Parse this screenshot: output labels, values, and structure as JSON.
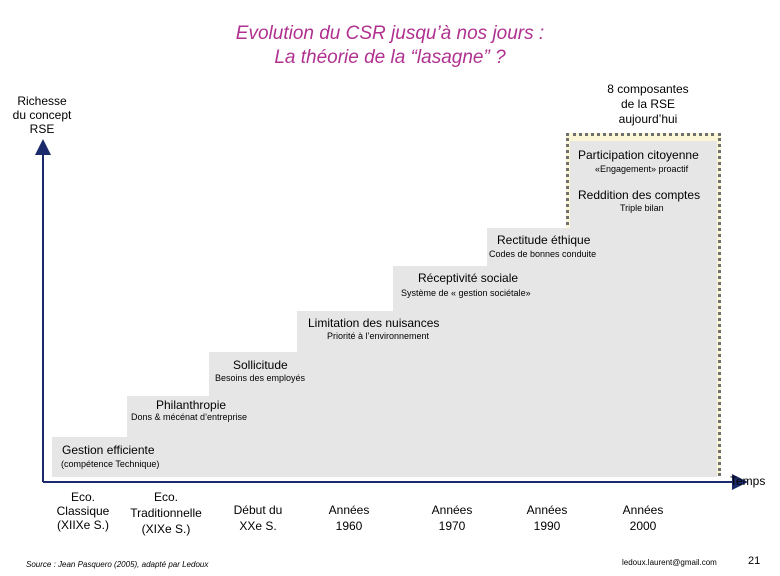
{
  "title": {
    "line1": "Evolution du CSR jusqu’à nos jours :",
    "line2": "La théorie de la “lasagne” ?"
  },
  "y_axis": {
    "label": [
      "Richesse",
      "du concept",
      "RSE"
    ]
  },
  "rse_label": [
    "8 composantes",
    "de la RSE",
    "aujourd’hui"
  ],
  "x_axis": {
    "end_label": "Temps",
    "periods": [
      [
        "Eco.",
        "Classique",
        "(XIIXe S.)"
      ],
      [
        "Eco.",
        "Traditionnelle",
        "(XIXe S.)"
      ],
      [
        "Début du",
        "XXe S."
      ],
      [
        "Années",
        "1960"
      ],
      [
        "Années",
        "1970"
      ],
      [
        "Années",
        "1990"
      ],
      [
        "Années",
        "2000"
      ]
    ]
  },
  "layers": [
    {
      "label": "Participation citoyenne",
      "sub": "«Engagement» proactif"
    },
    {
      "label": "Reddition des comptes",
      "sub": "Triple bilan"
    },
    {
      "label": "Rectitude éthique",
      "sub": "Codes de bonnes conduite"
    },
    {
      "label": "Réceptivité sociale",
      "sub": "Système de « gestion sociétale»"
    },
    {
      "label": "Limitation des nuisances",
      "sub": "Priorité à l’environnement"
    },
    {
      "label": "Sollicitude",
      "sub": "Besoins des employés"
    },
    {
      "label": "Philanthropie",
      "sub": "Dons & mécénat d’entreprise"
    },
    {
      "label": "Gestion efficiente",
      "sub": "(compétence Technique)"
    }
  ],
  "footer": {
    "source": "Source : Jean Pasquero (2005), adapté par Ledoux",
    "email": "ledoux.laurent@gmail.com",
    "page": "21"
  },
  "colors": {
    "title": "#b0318f",
    "step_fill": "#e6e6e6",
    "highlight_fill": "#fbf7d6"
  }
}
